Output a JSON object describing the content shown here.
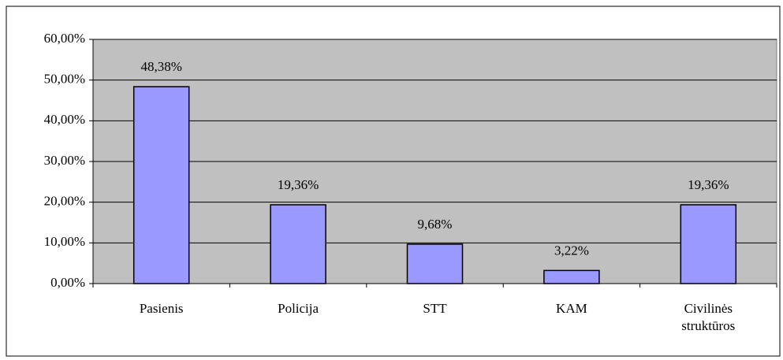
{
  "chart_data": {
    "type": "bar",
    "categories": [
      "Pasienis",
      "Policija",
      "STT",
      "KAM",
      "Civilinės struktūros"
    ],
    "values": [
      48.38,
      19.36,
      9.68,
      3.22,
      19.36
    ],
    "value_labels": [
      "48,38%",
      "19,36%",
      "9,68%",
      "3,22%",
      "19,36%"
    ],
    "color": "#9999ff",
    "plot_background": "#c0c0c0",
    "ylim": [
      0,
      60
    ],
    "yticks": [
      {
        "value": 0,
        "label": "0,00%"
      },
      {
        "value": 10,
        "label": "10,00%"
      },
      {
        "value": 20,
        "label": "20,00%"
      },
      {
        "value": 30,
        "label": "30,00%"
      },
      {
        "value": 40,
        "label": "40,00%"
      },
      {
        "value": 50,
        "label": "50,00%"
      },
      {
        "value": 60,
        "label": "60,00%"
      }
    ],
    "grid": true
  }
}
